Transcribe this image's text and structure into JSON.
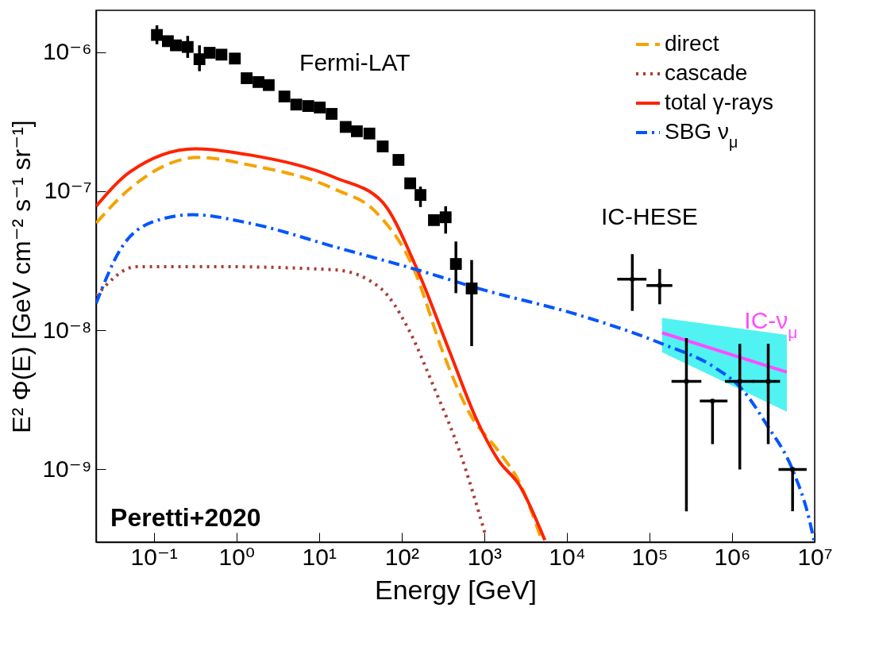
{
  "chart_data": {
    "type": "line",
    "xlabel": "Energy [GeV]",
    "ylabel": "E² Φ(E) [GeV cm⁻² s⁻¹ sr⁻¹]",
    "log": "xy",
    "xlim": [
      0.02,
      10000000
    ],
    "ylim": [
      3e-10,
      2e-06
    ],
    "xticks": [
      {
        "value": 0.1,
        "label": "10⁻¹"
      },
      {
        "value": 1,
        "label": "10⁰"
      },
      {
        "value": 10,
        "label": "10¹"
      },
      {
        "value": 100,
        "label": "10²"
      },
      {
        "value": 1000,
        "label": "10³"
      },
      {
        "value": 10000,
        "label": "10⁴"
      },
      {
        "value": 100000,
        "label": "10⁵"
      },
      {
        "value": 1000000,
        "label": "10⁶"
      },
      {
        "value": 10000000,
        "label": "10⁷"
      }
    ],
    "yticks": [
      {
        "value": 1e-09,
        "label": "10⁻⁹"
      },
      {
        "value": 1e-08,
        "label": "10⁻⁸"
      },
      {
        "value": 1e-07,
        "label": "10⁻⁷"
      },
      {
        "value": 1e-06,
        "label": "10⁻⁶"
      }
    ],
    "grid": false,
    "legend": "top right",
    "annotations": [
      "Fermi-LAT",
      "IC-HESE",
      "Peretti+2020"
    ],
    "series": [
      {
        "name": "IC-ν$_{μ}$",
        "color": "#ff4dff",
        "x": [
          142000,
          4600000
        ],
        "values": [
          9.6e-09,
          5e-09
        ],
        "lower": [
          6.95e-09,
          2.6e-09
        ],
        "upper": [
          1.23e-08,
          9.25e-09
        ]
      },
      {
        "name": "direct",
        "color": "#f5a300",
        "line_style": "dashed",
        "x": [
          0.02,
          0.0518,
          0.349,
          1.48,
          15.8,
          47.4,
          142,
          320,
          659,
          1517,
          2626,
          4955
        ],
        "values": [
          5.9e-08,
          1.05e-07,
          1.75e-07,
          1.54e-07,
          1.03e-07,
          7.2e-08,
          2.72e-08,
          6.8e-09,
          2.55e-09,
          1.33e-09,
          8.2e-10,
          3.1e-10
        ]
      },
      {
        "name": "cascade",
        "color": "#a83c36",
        "line_style": "dotted",
        "x": [
          0.02,
          0.0617,
          0.604,
          15.8,
          56.5,
          119,
          246,
          507,
          1045
        ],
        "values": [
          1.77e-08,
          2.87e-08,
          2.87e-08,
          2.72e-08,
          1.99e-08,
          1.04e-08,
          3.9e-09,
          1.33e-09,
          3.3e-10
        ]
      },
      {
        "name": "total γ-rays",
        "color": "#ff2200",
        "line_style": "solid",
        "x": [
          0.02,
          0.0518,
          0.32,
          1.48,
          15.8,
          56.5,
          155,
          389,
          803,
          1517,
          2626,
          5410
        ],
        "values": [
          7.8e-08,
          1.38e-07,
          2.02e-07,
          1.82e-07,
          1.25e-07,
          8.55e-08,
          2.72e-08,
          6.8e-09,
          2.3e-09,
          1.14e-09,
          7.8e-10,
          3.1e-10
        ]
      },
      {
        "name": "SBG ν$_{μ}$",
        "color": "#0055ff",
        "line_style": "dashdot",
        "x": [
          0.02,
          0.0389,
          0.0979,
          0.293,
          1.48,
          15.8,
          155,
          877,
          15800,
          142000,
          617000,
          1270000,
          2620000,
          5530000,
          8570000,
          9780000
        ],
        "values": [
          1.56e-08,
          3.77e-08,
          6.03e-08,
          6.78e-08,
          5.87e-08,
          3.97e-08,
          2.72e-08,
          1.99e-08,
          1.26e-08,
          8e-09,
          5.4e-09,
          3.87e-09,
          2.1e-09,
          9.6e-10,
          4.4e-10,
          3.1e-10
        ]
      },
      {
        "type": "scatter",
        "color": "#000000",
        "marker": "square",
        "x": [
          0.109,
          0.148,
          0.185,
          0.257,
          0.357,
          0.474,
          0.659,
          0.957,
          1.33,
          1.85,
          2.46,
          3.81,
          5.3,
          7.4,
          10.2,
          14.2,
          21,
          28.7,
          40.7,
          59,
          91.6,
          127,
          169,
          246,
          341,
          454,
          704
        ],
        "values": [
          1.33e-06,
          1.2e-06,
          1.12e-06,
          1.09e-06,
          8.9e-07,
          9.9e-07,
          9.6e-07,
          9e-07,
          6.5e-07,
          6.1e-07,
          5.8e-07,
          4.8e-07,
          4.2e-07,
          4.1e-07,
          4e-07,
          3.6e-07,
          2.9e-07,
          2.7e-07,
          2.6e-07,
          2.1e-07,
          1.68e-07,
          1.14e-07,
          9.4e-08,
          6.2e-08,
          6.5e-08,
          3e-08,
          2e-08
        ],
        "errors": [
          [
            1.14e-06,
            1.56e-06
          ],
          null,
          null,
          [
            9.1e-07,
            1.31e-06
          ],
          [
            7.3e-07,
            1.12e-06
          ],
          null,
          null,
          null,
          null,
          null,
          null,
          null,
          null,
          null,
          null,
          null,
          null,
          null,
          null,
          null,
          null,
          null,
          [
            7.7e-08,
            1.08e-07
          ],
          null,
          [
            4.96e-08,
            7.8e-08
          ],
          [
            1.85e-08,
            4.35e-08
          ],
          [
            7.7e-09,
            3.2e-08
          ]
        ]
      },
      {
        "type": "scatter",
        "color": "#000000",
        "marker": "circle",
        "x": [
          62000,
          133000,
          280000,
          580000,
          1240000,
          2740000,
          5400000
        ],
        "values": [
          2.33e-08,
          2.1e-08,
          4.3e-09,
          3.1e-09,
          4.3e-09,
          4.3e-09,
          1e-09
        ],
        "errors": [
          [
            1.38e-08,
            3.53e-08
          ],
          [
            1.54e-08,
            2.76e-08
          ],
          [
            5e-10,
            8.8e-09
          ],
          [
            1.52e-09,
            3.1e-09
          ],
          [
            1e-09,
            8e-09
          ],
          [
            1.52e-09,
            8e-09
          ],
          [
            5e-10,
            1e-09
          ]
        ],
        "xerrors": [
          [
            40700,
            92000
          ],
          [
            92000,
            189000
          ],
          [
            185000,
            425000
          ],
          [
            407000,
            880000
          ],
          [
            820000,
            1850000
          ],
          [
            1770000,
            3810000
          ],
          [
            3650000,
            8000000
          ]
        ]
      }
    ]
  }
}
